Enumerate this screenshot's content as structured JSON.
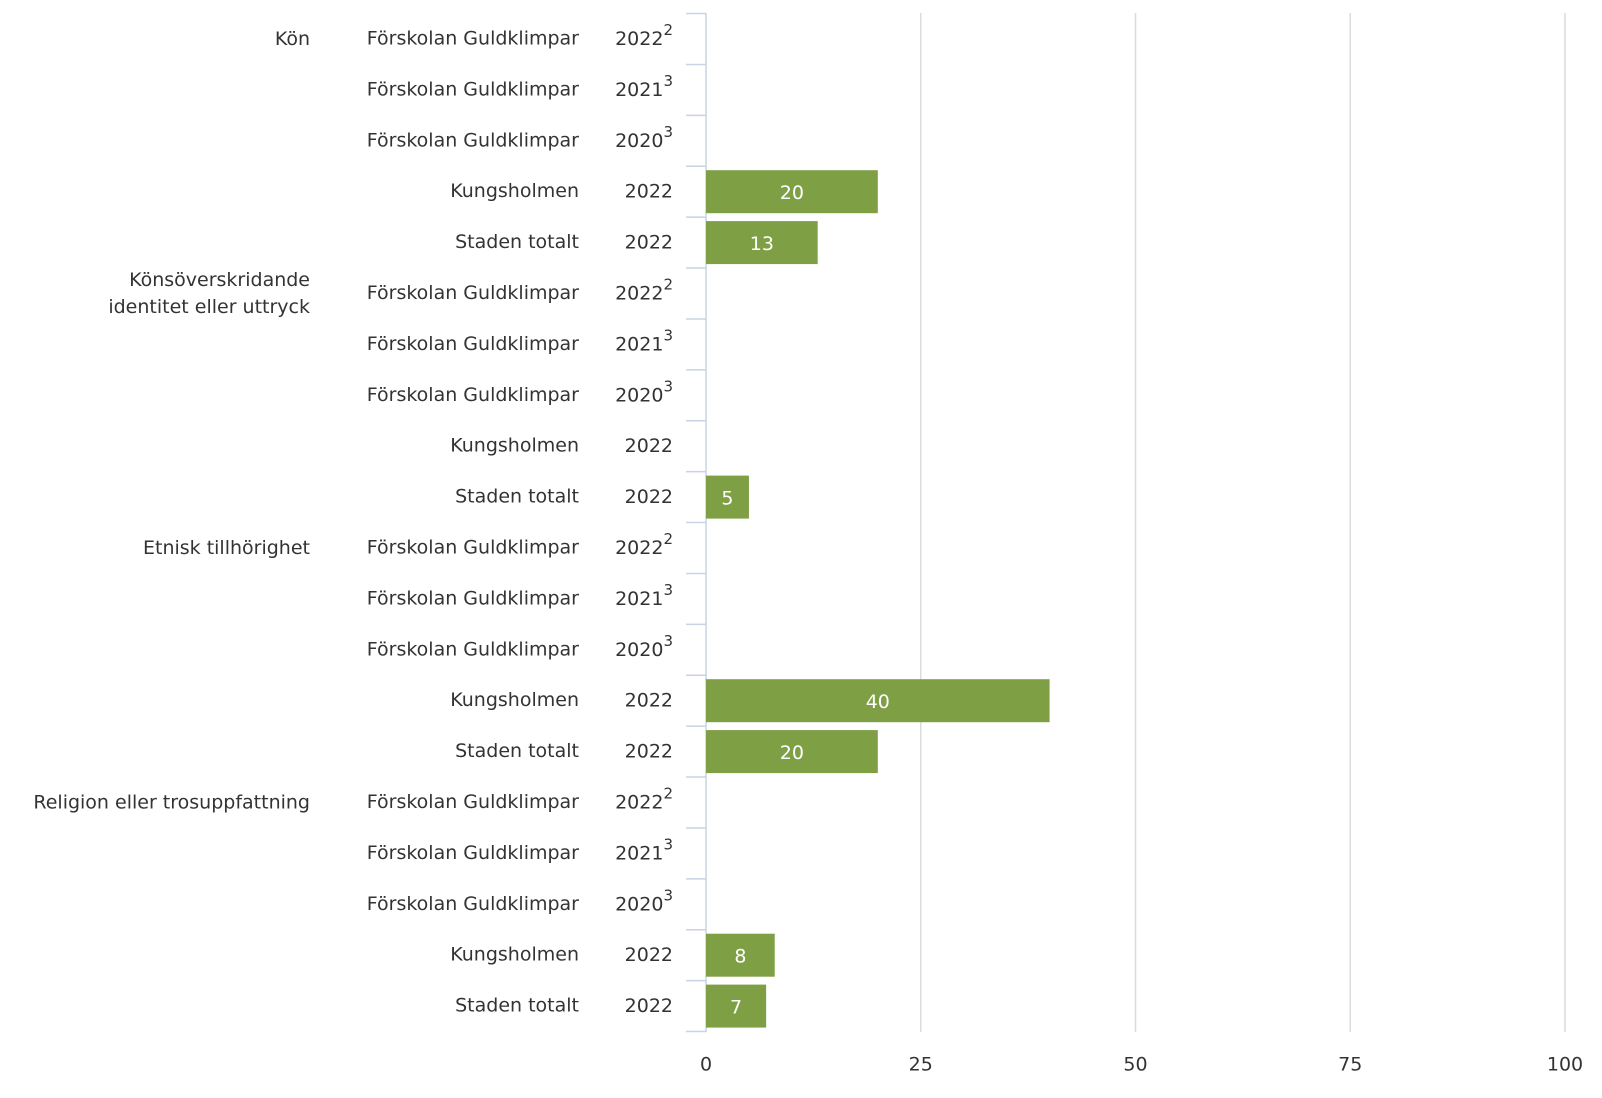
{
  "chart_data": {
    "type": "bar",
    "color": "#7f9f45",
    "xlim": [
      0,
      100
    ],
    "xticks": [
      0,
      25,
      50,
      75,
      100
    ],
    "grid": true,
    "groups": [
      {
        "label": [
          "Kön"
        ],
        "categories": [
          {
            "name": "Förskolan Guldklimpar",
            "year": "2022",
            "note": "2"
          },
          {
            "name": "Förskolan Guldklimpar",
            "year": "2021",
            "note": "3"
          },
          {
            "name": "Förskolan Guldklimpar",
            "year": "2020",
            "note": "3"
          },
          {
            "name": "Kungsholmen",
            "year": "2022"
          },
          {
            "name": "Staden totalt",
            "year": "2022"
          }
        ],
        "values": [
          null,
          null,
          null,
          20,
          13
        ]
      },
      {
        "label": [
          "Könsöverskridande",
          "identitet eller uttryck"
        ],
        "categories": [
          {
            "name": "Förskolan Guldklimpar",
            "year": "2022",
            "note": "2"
          },
          {
            "name": "Förskolan Guldklimpar",
            "year": "2021",
            "note": "3"
          },
          {
            "name": "Förskolan Guldklimpar",
            "year": "2020",
            "note": "3"
          },
          {
            "name": "Kungsholmen",
            "year": "2022"
          },
          {
            "name": "Staden totalt",
            "year": "2022"
          }
        ],
        "values": [
          null,
          null,
          null,
          null,
          5
        ]
      },
      {
        "label": [
          "Etnisk tillhörighet"
        ],
        "categories": [
          {
            "name": "Förskolan Guldklimpar",
            "year": "2022",
            "note": "2"
          },
          {
            "name": "Förskolan Guldklimpar",
            "year": "2021",
            "note": "3"
          },
          {
            "name": "Förskolan Guldklimpar",
            "year": "2020",
            "note": "3"
          },
          {
            "name": "Kungsholmen",
            "year": "2022"
          },
          {
            "name": "Staden totalt",
            "year": "2022"
          }
        ],
        "values": [
          null,
          null,
          null,
          40,
          20
        ]
      },
      {
        "label": [
          "Religion eller trosuppfattning"
        ],
        "categories": [
          {
            "name": "Förskolan Guldklimpar",
            "year": "2022",
            "note": "2"
          },
          {
            "name": "Förskolan Guldklimpar",
            "year": "2021",
            "note": "3"
          },
          {
            "name": "Förskolan Guldklimpar",
            "year": "2020",
            "note": "3"
          },
          {
            "name": "Kungsholmen",
            "year": "2022"
          },
          {
            "name": "Staden totalt",
            "year": "2022"
          }
        ],
        "values": [
          null,
          null,
          null,
          8,
          7
        ]
      }
    ]
  }
}
